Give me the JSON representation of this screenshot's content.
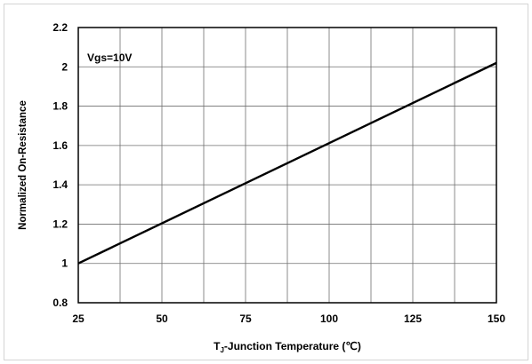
{
  "chart_data": {
    "type": "line",
    "annotation": "Vgs=10V",
    "xlabel_main": "T",
    "xlabel_sub": "J",
    "xlabel_rest": "-Junction Temperature (℃)",
    "ylabel": "Normalized On-Resistance",
    "xlim": [
      25,
      150
    ],
    "ylim": [
      0.8,
      2.2
    ],
    "xticks": [
      25,
      50,
      75,
      100,
      125,
      150
    ],
    "yticks": [
      "0.8",
      "1",
      "1.2",
      "1.4",
      "1.6",
      "1.8",
      "2",
      "2.2"
    ],
    "x_minor_step": 12.5,
    "grid": true,
    "series": [
      {
        "x": [
          25,
          150
        ],
        "y": [
          1.0,
          2.02
        ]
      }
    ],
    "colors": {
      "line": "#000000",
      "grid": "#6f6f6f"
    }
  }
}
